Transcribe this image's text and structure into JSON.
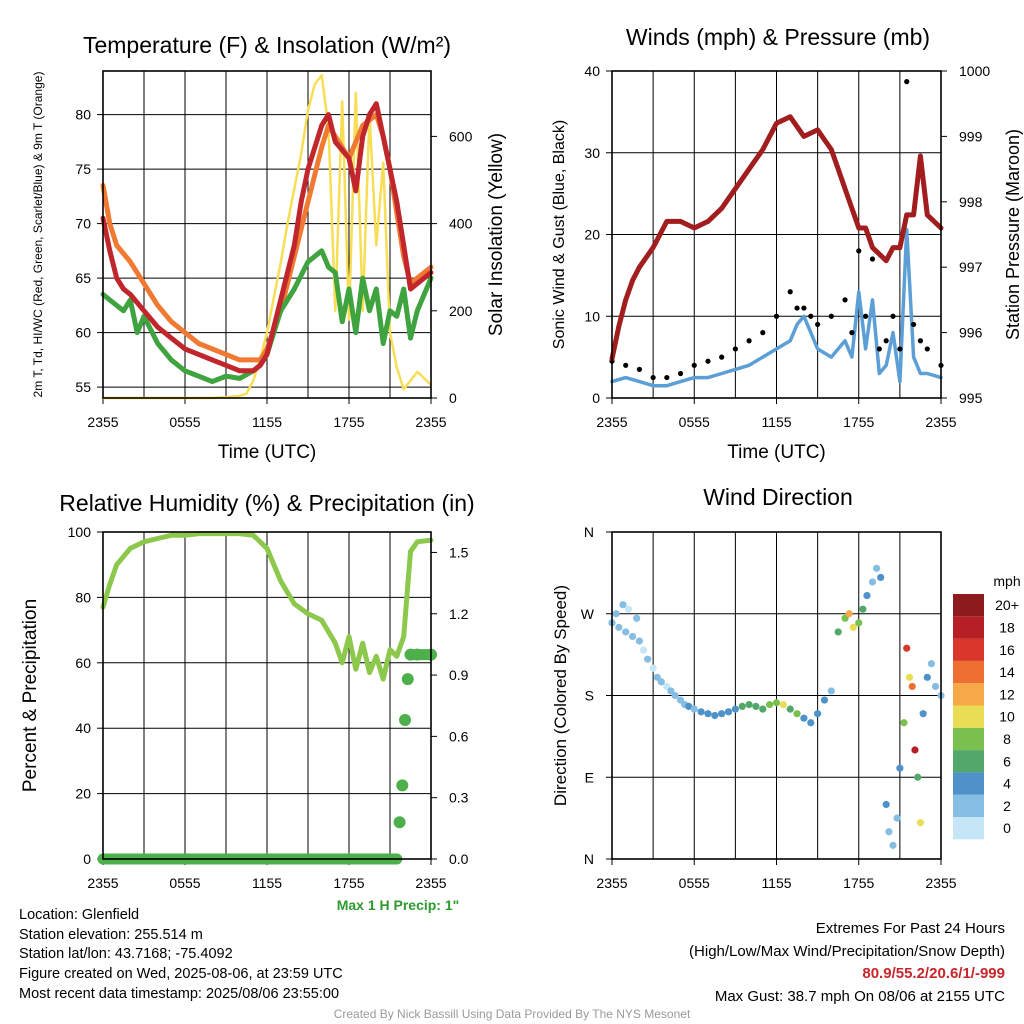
{
  "figure": {
    "credit": "Created By Nick Bassill Using Data Provided By The NYS Mesonet",
    "info_left": [
      "Location: Glenfield",
      "Station elevation: 255.514 m",
      "Station lat/lon: 43.7168; -75.4092",
      "Figure created on Wed, 2025-08-06, at 23:59 UTC",
      "Most recent data timestamp: 2025/08/06 23:55:00"
    ],
    "extremes_title": "Extremes For Past 24 Hours",
    "extremes_subtitle": "(High/Low/Max Wind/Precipitation/Snow Depth)",
    "extremes_values": "80.9/55.2/20.6/1/-999",
    "max_gust": "Max Gust: 38.7 mph On 08/06 at 2155 UTC",
    "max_precip_label": "Max 1 H Precip: 1\""
  },
  "colors": {
    "temp": "#c0262b",
    "wind_chill": "#c0262b",
    "dewpoint": "#3fa33f",
    "temp_9m": "#f07a32",
    "insolation": "#f7de55",
    "wind": "#5b9fd6",
    "gust": "#000000",
    "pressure": "#a11d1e",
    "rh": "#8cc84b",
    "precip": "#4db04a",
    "max_precip_text": "#2e9a2e",
    "extremes_text": "#c8262c"
  },
  "x_ticks": [
    "2355",
    "0555",
    "1155",
    "1755",
    "2355"
  ],
  "chart_data": [
    {
      "id": "temperature",
      "type": "line",
      "title": "Temperature (F) & Insolation (W/m²)",
      "xlabel": "Time (UTC)",
      "ylabel": "2m T, Td, HI/WC (Red, Green, Scarlet/Blue) & 9m T (Orange)",
      "y2label": "Solar Insolation (Yellow)",
      "x_range_hours": [
        0,
        24
      ],
      "ylim": [
        54,
        84
      ],
      "y_ticks": [
        55,
        60,
        65,
        70,
        75,
        80
      ],
      "y2lim": [
        0,
        750
      ],
      "y2_ticks": [
        0,
        200,
        400,
        600
      ],
      "grid": true,
      "series": [
        {
          "name": "2m T",
          "axis": "y",
          "color": "#c0262b",
          "x": [
            0,
            0.5,
            1,
            1.5,
            2,
            3,
            4,
            5,
            6,
            7,
            8,
            9,
            10,
            11,
            11.5,
            12,
            13,
            14,
            14.5,
            15,
            16,
            16.5,
            17,
            18,
            18.5,
            19,
            19.5,
            20,
            20.5,
            21,
            21.5,
            22,
            22.5,
            23,
            24
          ],
          "values": [
            70.5,
            67.5,
            65,
            64,
            63.5,
            62,
            60.5,
            59.5,
            58.5,
            58,
            57.5,
            57,
            56.5,
            56.5,
            57,
            58,
            63,
            68,
            72,
            75,
            79,
            80,
            77.5,
            76,
            73,
            78,
            80,
            81,
            78,
            75,
            72,
            68,
            64,
            64.5,
            65.5
          ]
        },
        {
          "name": "9m T",
          "axis": "y",
          "color": "#f07a32",
          "x": [
            0,
            0.5,
            1,
            2,
            3,
            4,
            5,
            6,
            7,
            8,
            9,
            10,
            11,
            11.5,
            12,
            13,
            14,
            15,
            16,
            16.5,
            17,
            18,
            19,
            20,
            20.5,
            21,
            21.5,
            22,
            22.5,
            23,
            24
          ],
          "values": [
            73.5,
            70,
            68,
            66.5,
            64.5,
            62.5,
            61,
            60,
            59,
            58.5,
            58,
            57.5,
            57.5,
            57.5,
            58.5,
            62,
            67,
            72,
            77,
            79,
            78,
            76,
            79,
            80,
            78,
            75,
            71,
            67,
            64.5,
            65,
            66
          ]
        },
        {
          "name": "Td",
          "axis": "y",
          "color": "#3fa33f",
          "x": [
            0,
            0.5,
            1,
            1.5,
            2,
            2.5,
            3,
            4,
            5,
            6,
            7,
            8,
            9,
            10,
            11,
            11.5,
            12,
            13,
            14,
            15,
            16,
            16.5,
            17,
            17.5,
            18,
            18.5,
            19,
            19.5,
            20,
            20.5,
            21,
            21.5,
            22,
            22.5,
            23,
            24
          ],
          "values": [
            63.5,
            63,
            62.5,
            62,
            63,
            60,
            61.5,
            59,
            57.5,
            56.5,
            56,
            55.5,
            56,
            55.8,
            56.5,
            57,
            58,
            62,
            64,
            66.5,
            67.5,
            66,
            65.5,
            61,
            64,
            60,
            65,
            62,
            64,
            59,
            62,
            61.5,
            64,
            59.5,
            62,
            65
          ]
        },
        {
          "name": "Insolation",
          "axis": "y2",
          "color": "#f7de55",
          "x": [
            0,
            2,
            4,
            6,
            8,
            9,
            10,
            10.5,
            11,
            11.5,
            12,
            12.5,
            13,
            13.5,
            14,
            14.5,
            15,
            15.5,
            16,
            16.5,
            17,
            17.5,
            18,
            18.5,
            19,
            19.5,
            20,
            20.5,
            21,
            21.5,
            22,
            22.5,
            23,
            24
          ],
          "values": [
            0,
            0,
            0,
            0,
            0,
            2,
            5,
            10,
            40,
            90,
            150,
            230,
            310,
            400,
            480,
            560,
            660,
            720,
            740,
            620,
            200,
            680,
            180,
            700,
            200,
            650,
            350,
            540,
            150,
            70,
            20,
            40,
            60,
            30
          ]
        }
      ]
    },
    {
      "id": "winds",
      "type": "line",
      "title": "Winds (mph) & Pressure (mb)",
      "xlabel": "Time (UTC)",
      "ylabel": "Sonic Wind & Gust (Blue, Black)",
      "y2label": "Station Pressure (Maroon)",
      "x_range_hours": [
        0,
        24
      ],
      "ylim": [
        0,
        40
      ],
      "y_ticks": [
        0,
        10,
        20,
        30,
        40
      ],
      "y2lim": [
        995,
        1000
      ],
      "y2_ticks": [
        995,
        996,
        997,
        998,
        999,
        1000
      ],
      "grid": true,
      "series": [
        {
          "name": "Sonic Wind",
          "axis": "y",
          "color": "#5b9fd6",
          "x": [
            0,
            1,
            2,
            3,
            4,
            5,
            6,
            7,
            8,
            9,
            10,
            11,
            12,
            13,
            13.5,
            14,
            14.5,
            15,
            16,
            17,
            17.5,
            18,
            18.5,
            19,
            19.5,
            20,
            20.5,
            21,
            21.5,
            22,
            22.5,
            23,
            24
          ],
          "values": [
            2,
            2.5,
            2,
            1.5,
            1.5,
            2,
            2.5,
            2.5,
            3,
            3.5,
            4,
            5,
            6,
            7,
            9,
            10,
            8,
            6,
            5,
            7,
            5,
            13,
            6,
            12,
            3,
            4,
            8,
            2,
            20.6,
            5,
            3,
            3,
            2.5
          ]
        },
        {
          "name": "Gust",
          "axis": "y",
          "color": "#000000",
          "x": [
            0,
            1,
            2,
            3,
            4,
            5,
            6,
            7,
            8,
            9,
            10,
            11,
            12,
            13,
            13.5,
            14,
            14.5,
            15,
            16,
            17,
            17.5,
            18,
            18.5,
            19,
            19.5,
            20,
            20.5,
            21,
            21.5,
            22,
            22.5,
            23,
            24
          ],
          "values": [
            4.5,
            4,
            3.5,
            2.5,
            2.5,
            3,
            4,
            4.5,
            5,
            6,
            7,
            8,
            10,
            13,
            11,
            11,
            10,
            9,
            10,
            12,
            8,
            18,
            10,
            17,
            6,
            7,
            10,
            6,
            38.7,
            9,
            7,
            6,
            4
          ]
        },
        {
          "name": "Station Pressure",
          "axis": "y2",
          "color": "#a11d1e",
          "x": [
            0,
            0.5,
            1,
            1.5,
            2,
            3,
            4,
            5,
            6,
            7,
            8,
            9,
            10,
            11,
            12,
            13,
            14,
            15,
            16,
            16.5,
            17,
            17.5,
            18,
            18.5,
            19,
            19.5,
            20,
            20.5,
            21,
            21.5,
            22,
            22.5,
            23,
            24
          ],
          "values": [
            995.6,
            996.1,
            996.5,
            996.8,
            997.0,
            997.3,
            997.7,
            997.7,
            997.6,
            997.7,
            997.9,
            998.2,
            998.5,
            998.8,
            999.2,
            999.3,
            999.0,
            999.1,
            998.8,
            998.5,
            998.2,
            997.9,
            997.6,
            997.6,
            997.3,
            997.2,
            997.1,
            997.3,
            997.3,
            997.8,
            997.8,
            998.7,
            997.8,
            997.6
          ]
        }
      ]
    },
    {
      "id": "humidity",
      "type": "line",
      "title": "Relative Humidity (%) & Precipitation (in)",
      "xlabel": "",
      "ylabel": "Percent & Precipitation",
      "x_range_hours": [
        0,
        24
      ],
      "ylim": [
        0,
        100
      ],
      "y_ticks": [
        0,
        20,
        40,
        60,
        80,
        100
      ],
      "y2lim": [
        0,
        1.6
      ],
      "y2_ticks": [
        "0.0",
        "0.3",
        "0.6",
        "0.9",
        "1.2",
        "1.5"
      ],
      "grid": true,
      "series": [
        {
          "name": "RH",
          "axis": "y",
          "color": "#8cc84b",
          "x": [
            0,
            0.5,
            1,
            2,
            3,
            4,
            5,
            6,
            7,
            8,
            9,
            10,
            11,
            12,
            13,
            14,
            15,
            16,
            17,
            17.5,
            18,
            18.5,
            19,
            19.5,
            20,
            20.5,
            21,
            21.5,
            22,
            22.5,
            23,
            24
          ],
          "values": [
            77,
            84,
            90,
            95,
            97,
            98,
            99,
            99,
            99.5,
            99.5,
            99.5,
            99.5,
            99,
            95,
            85,
            78,
            75,
            73,
            66,
            60,
            68,
            58,
            66,
            57,
            62,
            55,
            64,
            62,
            68,
            94,
            97,
            97.5
          ]
        },
        {
          "name": "Precipitation",
          "axis": "y2",
          "color": "#4db04a",
          "x": [
            0,
            21.5,
            21.7,
            21.9,
            22.1,
            22.3,
            22.5,
            23,
            24
          ],
          "values": [
            0,
            0,
            0.18,
            0.36,
            0.68,
            0.88,
            1.0,
            1.0,
            1.0
          ]
        }
      ]
    },
    {
      "id": "wind_direction",
      "type": "scatter",
      "title": "Wind Direction",
      "ylabel": "Direction (Colored By Speed)",
      "x_range_hours": [
        0,
        24
      ],
      "y_ticks": [
        "N",
        "E",
        "S",
        "W",
        "N"
      ],
      "ylim_degrees": [
        0,
        360
      ],
      "grid": true,
      "colorbar": {
        "unit": "mph",
        "labels": [
          "0",
          "2",
          "4",
          "6",
          "8",
          "10",
          "12",
          "14",
          "16",
          "18",
          "20+"
        ],
        "colors": [
          "#c5e6f7",
          "#86bde3",
          "#4f92c9",
          "#52a86a",
          "#7ac04f",
          "#e8dd54",
          "#f7a94a",
          "#ef6f33",
          "#d9362c",
          "#b61f26",
          "#8d1a1c"
        ]
      },
      "points": [
        [
          0,
          260,
          1
        ],
        [
          0.3,
          270,
          1
        ],
        [
          0.5,
          255,
          2
        ],
        [
          0.8,
          280,
          1
        ],
        [
          1,
          250,
          2
        ],
        [
          1.2,
          275,
          0
        ],
        [
          1.5,
          245,
          1
        ],
        [
          1.8,
          265,
          2
        ],
        [
          2,
          240,
          1
        ],
        [
          2.3,
          230,
          0
        ],
        [
          2.6,
          220,
          1
        ],
        [
          3,
          210,
          0
        ],
        [
          3.3,
          200,
          2
        ],
        [
          3.6,
          195,
          1
        ],
        [
          4,
          190,
          0
        ],
        [
          4.3,
          185,
          1
        ],
        [
          4.6,
          180,
          2
        ],
        [
          5,
          175,
          1
        ],
        [
          5.3,
          170,
          2
        ],
        [
          5.6,
          168,
          3
        ],
        [
          6,
          165,
          2
        ],
        [
          6.5,
          162,
          3
        ],
        [
          7,
          160,
          3
        ],
        [
          7.5,
          158,
          4
        ],
        [
          8,
          160,
          3
        ],
        [
          8.5,
          162,
          4
        ],
        [
          9,
          165,
          4
        ],
        [
          9.5,
          168,
          5
        ],
        [
          10,
          170,
          6
        ],
        [
          10.5,
          168,
          5
        ],
        [
          11,
          165,
          6
        ],
        [
          11.5,
          170,
          7
        ],
        [
          12,
          172,
          8
        ],
        [
          12.5,
          170,
          9
        ],
        [
          13,
          165,
          6
        ],
        [
          13.5,
          160,
          7
        ],
        [
          14,
          155,
          4
        ],
        [
          14.5,
          150,
          3
        ],
        [
          15,
          160,
          3
        ],
        [
          15.5,
          175,
          4
        ],
        [
          16,
          185,
          2
        ],
        [
          16.5,
          250,
          6
        ],
        [
          17,
          265,
          8
        ],
        [
          17.3,
          270,
          12
        ],
        [
          17.6,
          255,
          10
        ],
        [
          18,
          260,
          7
        ],
        [
          18.3,
          275,
          5
        ],
        [
          18.6,
          290,
          3
        ],
        [
          19,
          305,
          2
        ],
        [
          19.3,
          320,
          1
        ],
        [
          19.6,
          310,
          4
        ],
        [
          20,
          60,
          3
        ],
        [
          20.2,
          30,
          2
        ],
        [
          20.5,
          15,
          1
        ],
        [
          20.8,
          45,
          2
        ],
        [
          21,
          100,
          4
        ],
        [
          21.3,
          150,
          8
        ],
        [
          21.5,
          232,
          16
        ],
        [
          21.7,
          200,
          10
        ],
        [
          21.9,
          190,
          14
        ],
        [
          22.1,
          120,
          18
        ],
        [
          22.3,
          90,
          6
        ],
        [
          22.5,
          40,
          10
        ],
        [
          22.7,
          160,
          4
        ],
        [
          23,
          200,
          3
        ],
        [
          23.3,
          215,
          2
        ],
        [
          23.6,
          190,
          1
        ],
        [
          24,
          180,
          2
        ]
      ]
    }
  ]
}
